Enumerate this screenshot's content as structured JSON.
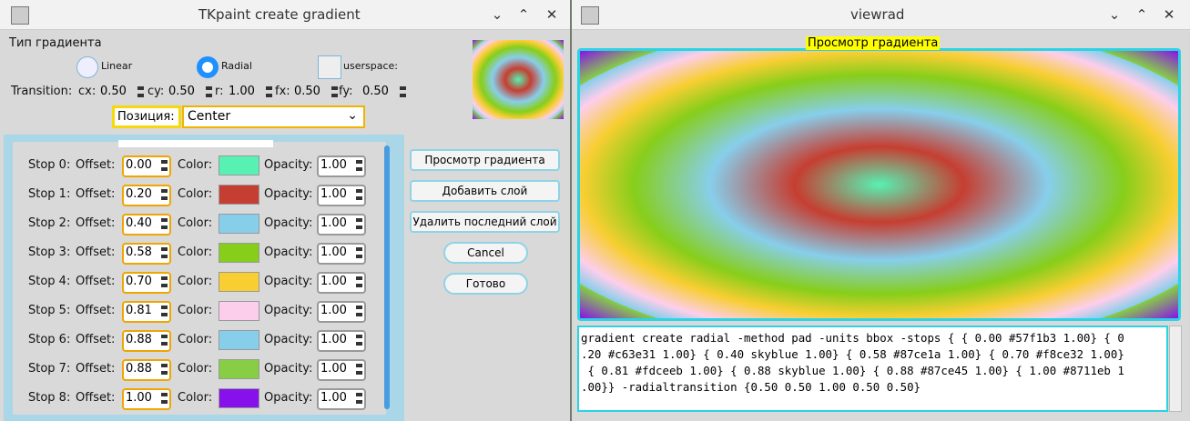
{
  "left_window": {
    "title": "TKpaint create gradient",
    "gradient_type_label": "Тип градиента",
    "radio_linear": "Linear",
    "radio_radial": "Radial",
    "checkbox_userspace": "userspace:",
    "transition": {
      "label": "Transition:",
      "fields": [
        {
          "label": "cx:",
          "value": "0.50"
        },
        {
          "label": "cy:",
          "value": "0.50"
        },
        {
          "label": "r:",
          "value": "1.00"
        },
        {
          "label": "fx:",
          "value": "0.50"
        },
        {
          "label": "fy:",
          "value": "0.50"
        }
      ]
    },
    "position": {
      "label": "Позиция:",
      "value": "Center"
    },
    "stop_field_labels": {
      "offset": "Offset:",
      "color": "Color:",
      "opacity": "Opacity:"
    },
    "stops": [
      {
        "label": "Stop 0:",
        "offset": "0.00",
        "color": "#57f1b3",
        "opacity": "1.00"
      },
      {
        "label": "Stop 1:",
        "offset": "0.20",
        "color": "#c63e31",
        "opacity": "1.00"
      },
      {
        "label": "Stop 2:",
        "offset": "0.40",
        "color": "#87ceeb",
        "opacity": "1.00"
      },
      {
        "label": "Stop 3:",
        "offset": "0.58",
        "color": "#87ce1a",
        "opacity": "1.00"
      },
      {
        "label": "Stop 4:",
        "offset": "0.70",
        "color": "#f8ce32",
        "opacity": "1.00"
      },
      {
        "label": "Stop 5:",
        "offset": "0.81",
        "color": "#fdceeb",
        "opacity": "1.00"
      },
      {
        "label": "Stop 6:",
        "offset": "0.88",
        "color": "#87ceeb",
        "opacity": "1.00"
      },
      {
        "label": "Stop 7:",
        "offset": "0.88",
        "color": "#87ce45",
        "opacity": "1.00"
      },
      {
        "label": "Stop 8:",
        "offset": "1.00",
        "color": "#8711eb",
        "opacity": "1.00"
      }
    ],
    "buttons": [
      "Просмотр градиента",
      "Добавить слой",
      "Удалить последний слой",
      "Cancel",
      "Готово"
    ]
  },
  "right_window": {
    "title": "viewrad",
    "preview_label": "Просмотр градиента",
    "code_lines": [
      "gradient create radial -method pad -units bbox -stops { { 0.00 #57f1b3 1.00} { 0",
      ".20 #c63e31 1.00} { 0.40 skyblue 1.00} { 0.58 #87ce1a 1.00} { 0.70 #f8ce32 1.00}",
      " { 0.81 #fdceeb 1.00} { 0.88 skyblue 1.00} { 0.88 #87ce45 1.00} { 1.00 #8711eb 1",
      ".00}} -radialtransition {0.50 0.50 1.00 0.50 0.50}"
    ]
  }
}
